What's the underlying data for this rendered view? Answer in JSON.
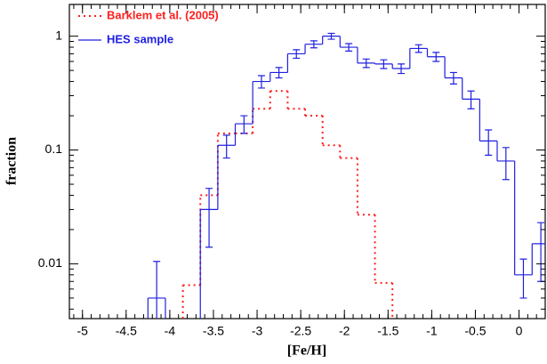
{
  "chart_data": {
    "type": "histogram",
    "x_label": "[Fe/H]",
    "y_label": "fraction",
    "xlim": [
      -5.15,
      0.3
    ],
    "ylim": [
      0.0033,
      1.9
    ],
    "log_y": true,
    "xticks": [
      -5,
      -4.5,
      -4,
      -3.5,
      -3,
      -2.5,
      -2,
      -1.5,
      -1,
      -0.5,
      0
    ],
    "yticks": [
      0.01,
      0.1,
      1
    ],
    "legend": "upper left",
    "series": [
      {
        "name": "Barklem et al. (2005)",
        "color": "#ff2020",
        "style": "dotted",
        "bins": [
          -3.85,
          -3.65,
          -3.45,
          -3.25,
          -3.05,
          -2.85,
          -2.65,
          -2.45,
          -2.25,
          -2.05,
          -1.85,
          -1.65,
          -1.45
        ],
        "values": [
          0.0065,
          0.04,
          0.14,
          0.14,
          0.23,
          0.33,
          0.23,
          0.2,
          0.11,
          0.085,
          0.027,
          0.0068
        ]
      },
      {
        "name": "HES sample",
        "color": "#2020e0",
        "style": "solid",
        "bins": [
          -4.25,
          -4.05,
          -3.85,
          -3.65,
          -3.45,
          -3.25,
          -3.05,
          -2.85,
          -2.65,
          -2.45,
          -2.25,
          -2.05,
          -1.85,
          -1.65,
          -1.45,
          -1.25,
          -1.05,
          -0.85,
          -0.65,
          -0.45,
          -0.25,
          -0.05,
          0.15,
          0.35
        ],
        "values": [
          0.005,
          null,
          null,
          0.03,
          0.11,
          0.17,
          0.4,
          0.48,
          0.7,
          0.85,
          1.0,
          0.8,
          0.58,
          0.57,
          0.52,
          0.78,
          0.66,
          0.43,
          0.28,
          0.12,
          0.08,
          0.008,
          0.015
        ],
        "errors": [
          0.0055,
          null,
          null,
          0.016,
          0.025,
          0.03,
          0.05,
          0.05,
          0.06,
          0.06,
          0.06,
          0.06,
          0.05,
          0.05,
          0.05,
          0.06,
          0.06,
          0.05,
          0.05,
          0.03,
          0.025,
          0.003,
          0.008
        ]
      }
    ]
  }
}
